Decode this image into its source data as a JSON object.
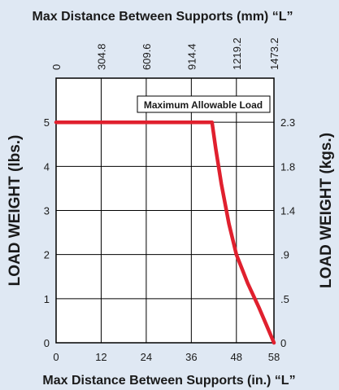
{
  "chart_data": {
    "type": "line",
    "title_top": "Max Distance Between Supports (mm) “L”",
    "xlabel": "Max Distance Between Supports (in.) “L”",
    "ylabel_left": "LOAD WEIGHT (lbs.)",
    "ylabel_right": "LOAD WEIGHT (kgs.)",
    "legend": "Maximum Allowable Load",
    "x_ticks_in": [
      "0",
      "12",
      "24",
      "36",
      "48",
      "58"
    ],
    "x_ticks_mm": [
      "0",
      "304.8",
      "609.6",
      "914.4",
      "1219.2",
      "1473.2"
    ],
    "y_ticks_lbs": [
      "0",
      "1",
      "2",
      "3",
      "4",
      "5"
    ],
    "y_ticks_kgs": [
      "0",
      ".5",
      ".9",
      "1.4",
      "1.8",
      "2.3"
    ],
    "xlim": [
      0,
      58
    ],
    "ylim": [
      0,
      6
    ],
    "grid": true,
    "series": [
      {
        "name": "Maximum Allowable Load",
        "color": "#e0202e",
        "x": [
          0,
          41.5,
          42.5,
          44,
          46,
          48,
          51,
          54,
          56,
          58
        ],
        "y": [
          5,
          5,
          4.4,
          3.6,
          2.7,
          2.0,
          1.35,
          0.8,
          0.4,
          0
        ]
      }
    ]
  }
}
